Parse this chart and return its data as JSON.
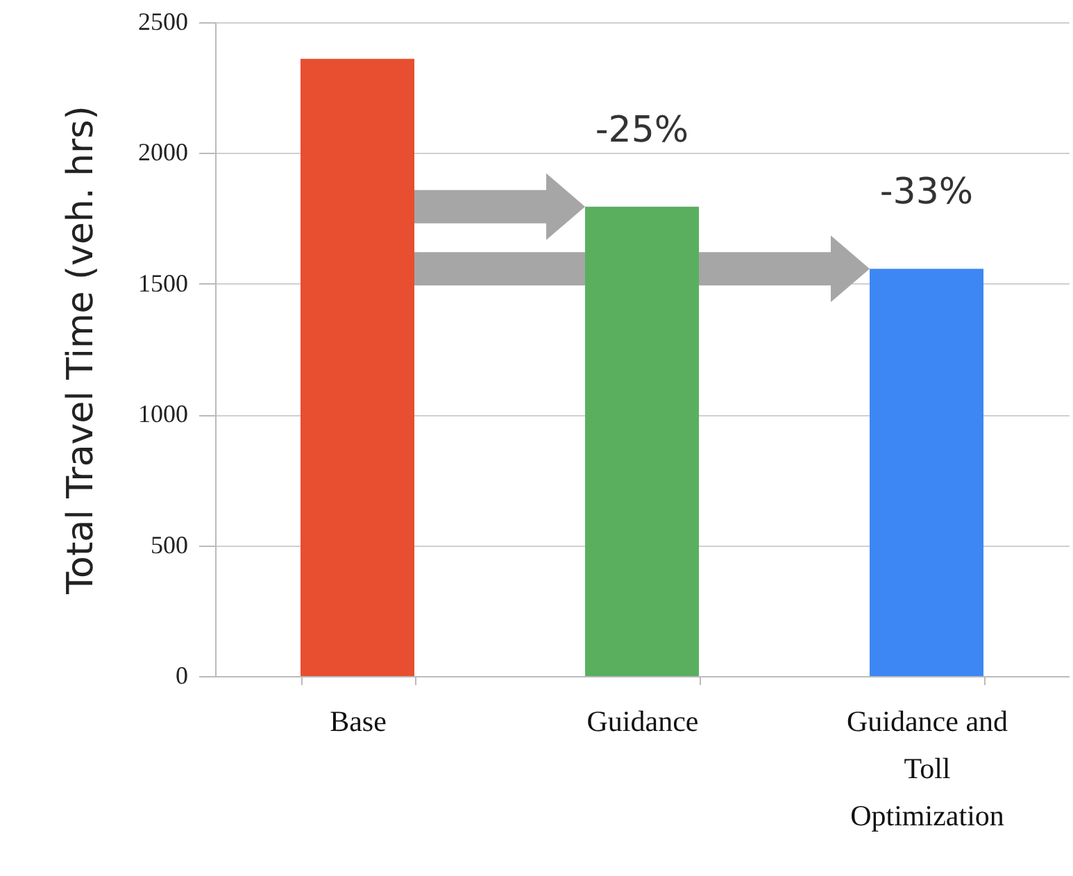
{
  "chart_data": {
    "type": "bar",
    "ylabel": "Total Travel Time (veh. hrs)",
    "categories": [
      "Base",
      "Guidance",
      "Guidance and Toll Optimization"
    ],
    "values": [
      2360,
      1795,
      1557
    ],
    "colors": [
      "#e84e30",
      "#5aaf5f",
      "#3d87f5"
    ],
    "ylim": [
      0,
      2500
    ],
    "yticks": [
      0,
      500,
      1000,
      1500,
      2000,
      2500
    ],
    "grid": "y",
    "annotations": [
      "-25%",
      "-33%"
    ]
  }
}
